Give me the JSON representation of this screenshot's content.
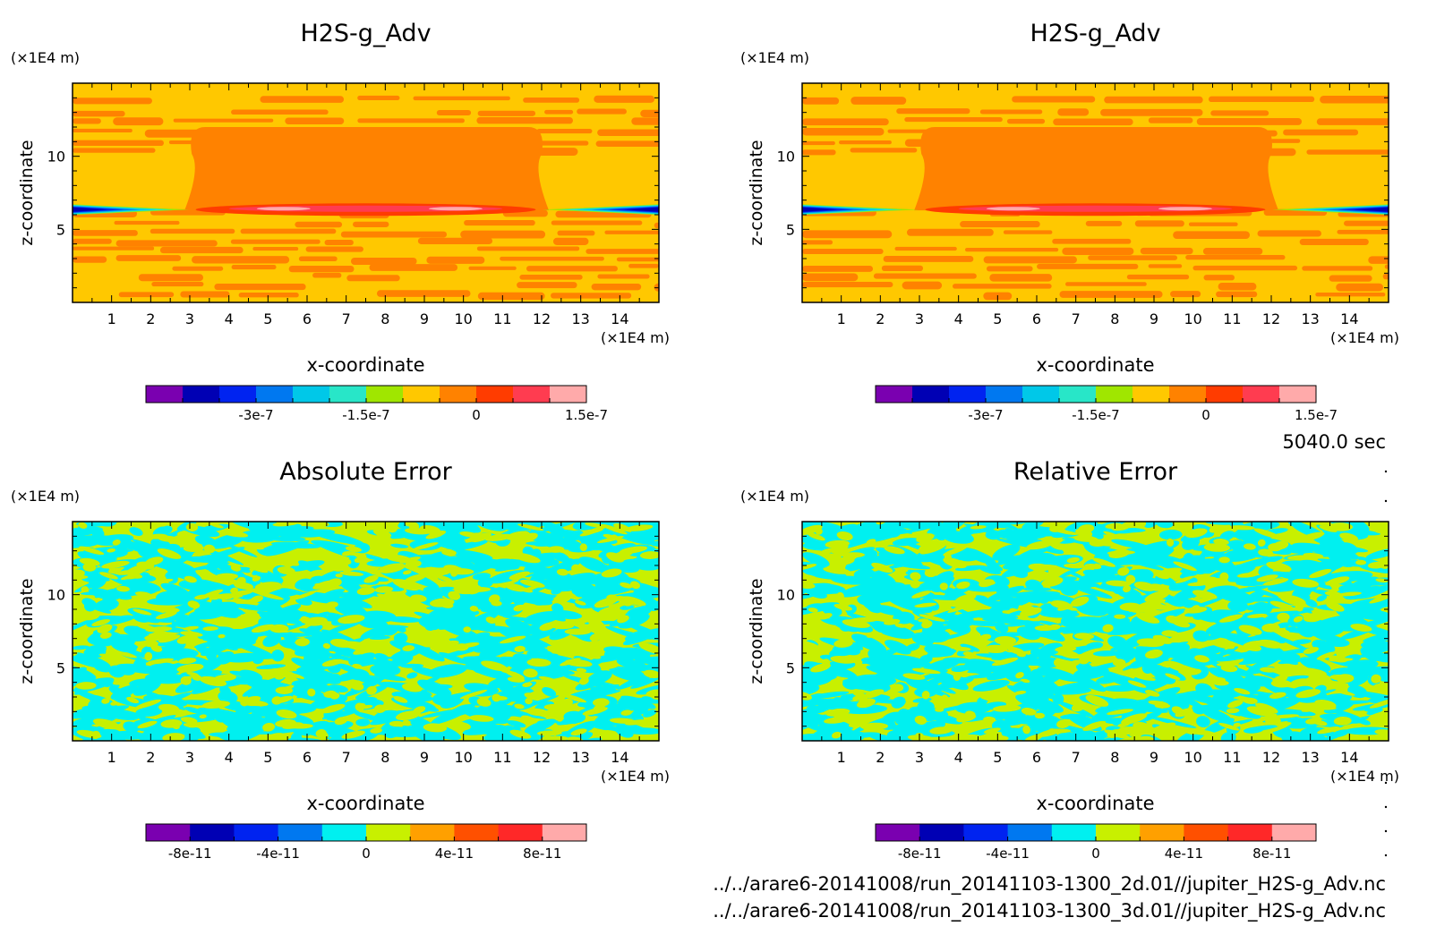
{
  "timestamp": "5040.0 sec",
  "files": [
    "../../arare6-20141008/run_20141103-1300_2d.01//jupiter_H2S-g_Adv.nc",
    "../../arare6-20141008/run_20141103-1300_3d.01//jupiter_H2S-g_Adv.nc"
  ],
  "chart_data": [
    {
      "type": "heatmap",
      "title": "H2S-g_Adv",
      "xlabel": "x-coordinate",
      "ylabel": "z-coordinate",
      "x_unit": "(×1E4 m)",
      "y_unit": "(×1E4 m)",
      "xlim": [
        0,
        15
      ],
      "ylim": [
        0,
        15
      ],
      "xticks": [
        "1",
        "2",
        "3",
        "4",
        "5",
        "6",
        "7",
        "8",
        "9",
        "10",
        "11",
        "12",
        "13",
        "14"
      ],
      "yticks": [
        "5",
        "10"
      ],
      "colorbar": {
        "colors": [
          "#7a00b0",
          "#0000b4",
          "#0023f0",
          "#0078f0",
          "#00c8e8",
          "#28e6c8",
          "#a0e600",
          "#ffc800",
          "#ff8200",
          "#ff3c00",
          "#ff3c50",
          "#ffaaaa"
        ],
        "tick_labels": [
          "-3e-7",
          "-1.5e-7",
          "0",
          "1.5e-7"
        ],
        "tick_positions": [
          3,
          6,
          9,
          12
        ]
      },
      "pattern": "plume"
    },
    {
      "type": "heatmap",
      "title": "H2S-g_Adv",
      "xlabel": "x-coordinate",
      "ylabel": "z-coordinate",
      "x_unit": "(×1E4 m)",
      "y_unit": "(×1E4 m)",
      "xlim": [
        0,
        15
      ],
      "ylim": [
        0,
        15
      ],
      "xticks": [
        "1",
        "2",
        "3",
        "4",
        "5",
        "6",
        "7",
        "8",
        "9",
        "10",
        "11",
        "12",
        "13",
        "14"
      ],
      "yticks": [
        "5",
        "10"
      ],
      "colorbar": {
        "colors": [
          "#7a00b0",
          "#0000b4",
          "#0023f0",
          "#0078f0",
          "#00c8e8",
          "#28e6c8",
          "#a0e600",
          "#ffc800",
          "#ff8200",
          "#ff3c00",
          "#ff3c50",
          "#ffaaaa"
        ],
        "tick_labels": [
          "-3e-7",
          "-1.5e-7",
          "0",
          "1.5e-7"
        ],
        "tick_positions": [
          3,
          6,
          9,
          12
        ]
      },
      "pattern": "plume"
    },
    {
      "type": "heatmap",
      "title": "Absolute Error",
      "xlabel": "x-coordinate",
      "ylabel": "z-coordinate",
      "x_unit": "(×1E4 m)",
      "y_unit": "(×1E4 m)",
      "xlim": [
        0,
        15
      ],
      "ylim": [
        0,
        15
      ],
      "xticks": [
        "1",
        "2",
        "3",
        "4",
        "5",
        "6",
        "7",
        "8",
        "9",
        "10",
        "11",
        "12",
        "13",
        "14"
      ],
      "yticks": [
        "5",
        "10"
      ],
      "colorbar": {
        "colors": [
          "#7a00b0",
          "#0000b4",
          "#0023f0",
          "#0078f0",
          "#00f0f0",
          "#c8f000",
          "#ffa000",
          "#ff5000",
          "#ff2828",
          "#ffaaaa"
        ],
        "tick_labels": [
          "-8e-11",
          "-4e-11",
          "0",
          "4e-11",
          "8e-11"
        ],
        "tick_positions": [
          1,
          3,
          5,
          7,
          9
        ]
      },
      "pattern": "noise",
      "field_colors": [
        "#00f0f0",
        "#c8f000"
      ]
    },
    {
      "type": "heatmap",
      "title": "Relative Error",
      "xlabel": "x-coordinate",
      "ylabel": "z-coordinate",
      "x_unit": "(×1E4 m)",
      "y_unit": "(×1E4 m)",
      "xlim": [
        0,
        15
      ],
      "ylim": [
        0,
        15
      ],
      "xticks": [
        "1",
        "2",
        "3",
        "4",
        "5",
        "6",
        "7",
        "8",
        "9",
        "10",
        "11",
        "12",
        "13",
        "14"
      ],
      "yticks": [
        "5",
        "10"
      ],
      "colorbar": {
        "colors": [
          "#7a00b0",
          "#0000b4",
          "#0023f0",
          "#0078f0",
          "#00f0f0",
          "#c8f000",
          "#ffa000",
          "#ff5000",
          "#ff2828",
          "#ffaaaa"
        ],
        "tick_labels": [
          "-8e-11",
          "-4e-11",
          "0",
          "4e-11",
          "8e-11"
        ],
        "tick_positions": [
          1,
          3,
          5,
          7,
          9
        ]
      },
      "pattern": "noise",
      "field_colors": [
        "#00f0f0",
        "#c8f000"
      ]
    }
  ]
}
